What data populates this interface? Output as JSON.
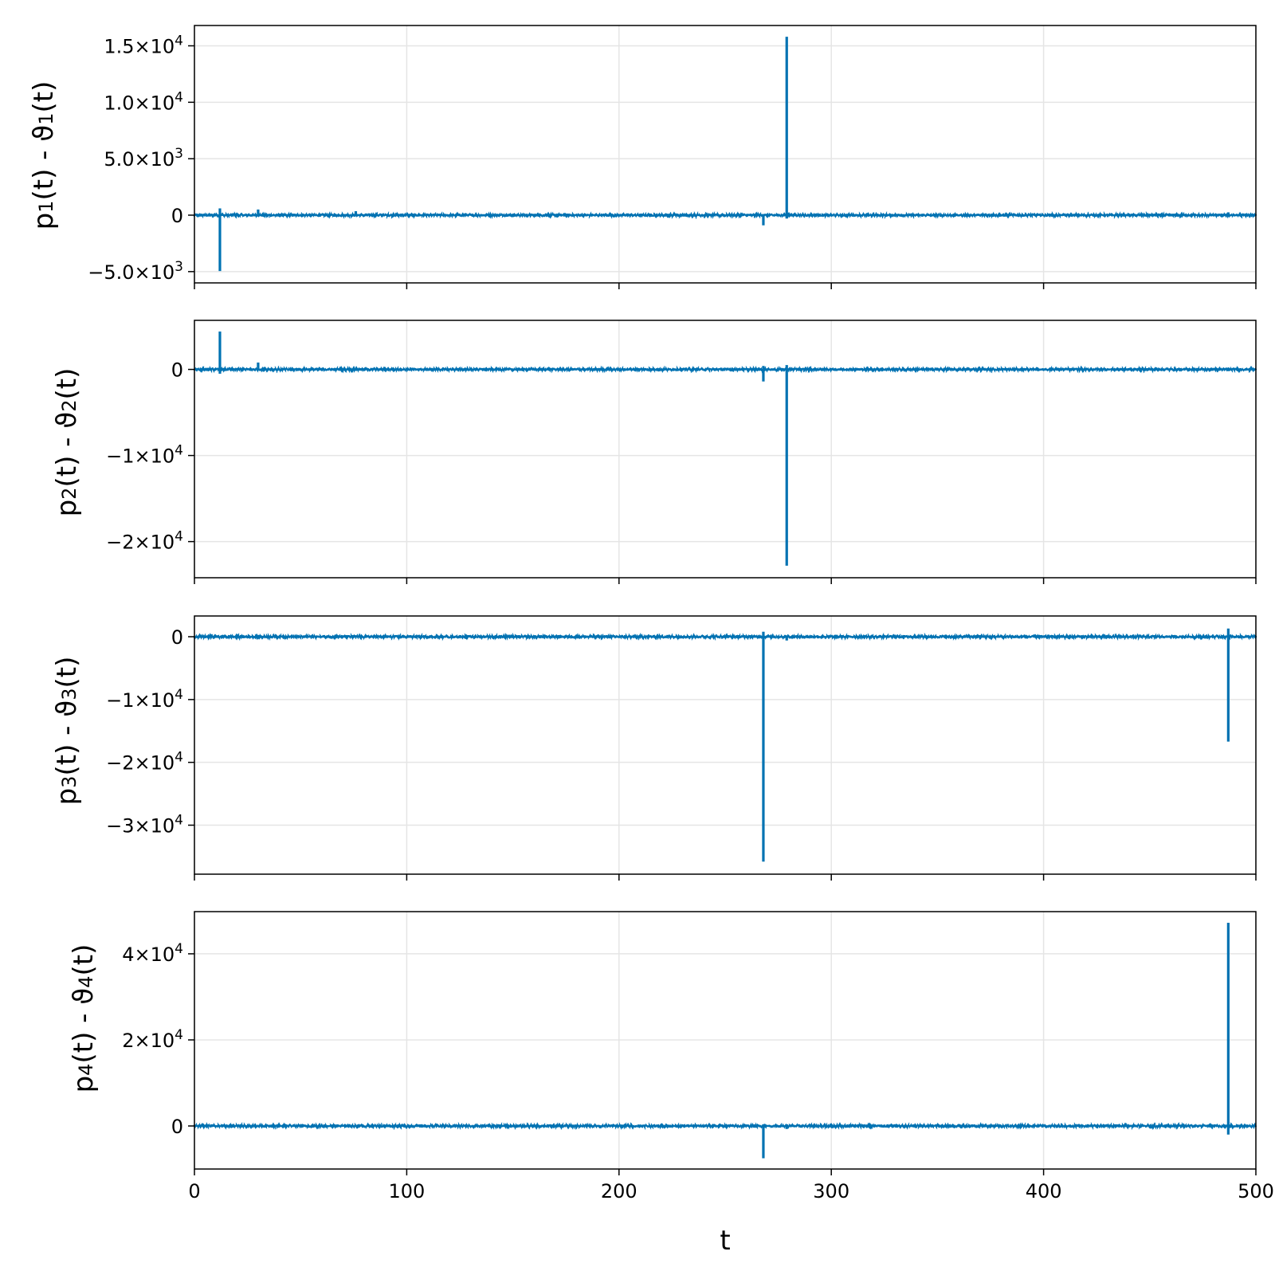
{
  "chart_data": [
    {
      "type": "line",
      "ylabel_parts": {
        "lead": "p",
        "sub1": "1",
        "mid": "(t) - ϑ",
        "sub2": "1",
        "tail": "(t)"
      },
      "xlim": [
        0,
        500
      ],
      "ylim": [
        -6000,
        16800
      ],
      "xticks": [
        0,
        100,
        200,
        300,
        400,
        500
      ],
      "yticks": [
        {
          "value": 15000,
          "label": "1.5×10",
          "exp": "4"
        },
        {
          "value": 10000,
          "label": "1.0×10",
          "exp": "4"
        },
        {
          "value": 5000,
          "label": "5.0×10",
          "exp": "3"
        },
        {
          "value": 0,
          "label": "0",
          "exp": ""
        },
        {
          "value": -5000,
          "label": "−5.0×10",
          "exp": "3"
        }
      ],
      "grid": true,
      "noise": 70,
      "spikes": [
        {
          "x": 12,
          "min": -4950,
          "max": 600
        },
        {
          "x": 30,
          "min": -50,
          "max": 500
        },
        {
          "x": 76,
          "min": -50,
          "max": 350
        },
        {
          "x": 268,
          "min": -900,
          "max": 100
        },
        {
          "x": 279,
          "min": -300,
          "max": 15800
        },
        {
          "x": 487,
          "min": -100,
          "max": 250
        }
      ]
    },
    {
      "type": "line",
      "ylabel_parts": {
        "lead": "p",
        "sub1": "2",
        "mid": "(t) - ϑ",
        "sub2": "2",
        "tail": "(t)"
      },
      "xlim": [
        0,
        500
      ],
      "ylim": [
        -24200,
        5700
      ],
      "xticks": [
        0,
        100,
        200,
        300,
        400,
        500
      ],
      "yticks": [
        {
          "value": 0,
          "label": "0",
          "exp": ""
        },
        {
          "value": -10000,
          "label": "−1×10",
          "exp": "4"
        },
        {
          "value": -20000,
          "label": "−2×10",
          "exp": "4"
        }
      ],
      "grid": true,
      "noise": 90,
      "spikes": [
        {
          "x": 12,
          "min": -500,
          "max": 4400
        },
        {
          "x": 30,
          "min": -100,
          "max": 800
        },
        {
          "x": 268,
          "min": -1400,
          "max": 400
        },
        {
          "x": 279,
          "min": -22800,
          "max": 500
        },
        {
          "x": 487,
          "min": -200,
          "max": 200
        }
      ]
    },
    {
      "type": "line",
      "ylabel_parts": {
        "lead": "p",
        "sub1": "3",
        "mid": "(t) - ϑ",
        "sub2": "3",
        "tail": "(t)"
      },
      "xlim": [
        0,
        500
      ],
      "ylim": [
        -37800,
        3300
      ],
      "xticks": [
        0,
        100,
        200,
        300,
        400,
        500
      ],
      "yticks": [
        {
          "value": 0,
          "label": "0",
          "exp": ""
        },
        {
          "value": -10000,
          "label": "−1×10",
          "exp": "4"
        },
        {
          "value": -20000,
          "label": "−2×10",
          "exp": "4"
        },
        {
          "value": -30000,
          "label": "−3×10",
          "exp": "4"
        }
      ],
      "grid": true,
      "noise": 140,
      "spikes": [
        {
          "x": 268,
          "min": -35800,
          "max": 800
        },
        {
          "x": 279,
          "min": -600,
          "max": 200
        },
        {
          "x": 487,
          "min": -16700,
          "max": 1300
        }
      ]
    },
    {
      "type": "line",
      "ylabel_parts": {
        "lead": "p",
        "sub1": "4",
        "mid": "(t) - ϑ",
        "sub2": "4",
        "tail": "(t)"
      },
      "xlim": [
        0,
        500
      ],
      "ylim": [
        -10000,
        49800
      ],
      "xticks": [
        0,
        100,
        200,
        300,
        400,
        500
      ],
      "yticks": [
        {
          "value": 40000,
          "label": "4×10",
          "exp": "4"
        },
        {
          "value": 20000,
          "label": "2×10",
          "exp": "4"
        },
        {
          "value": 0,
          "label": "0",
          "exp": ""
        }
      ],
      "grid": true,
      "noise": 200,
      "spikes": [
        {
          "x": 268,
          "min": -7500,
          "max": 400
        },
        {
          "x": 279,
          "min": -700,
          "max": 200
        },
        {
          "x": 487,
          "min": -2000,
          "max": 47200
        }
      ]
    }
  ],
  "xlabel": "t",
  "line_color": "#0072b2",
  "grid_color": "#e5e5e5"
}
